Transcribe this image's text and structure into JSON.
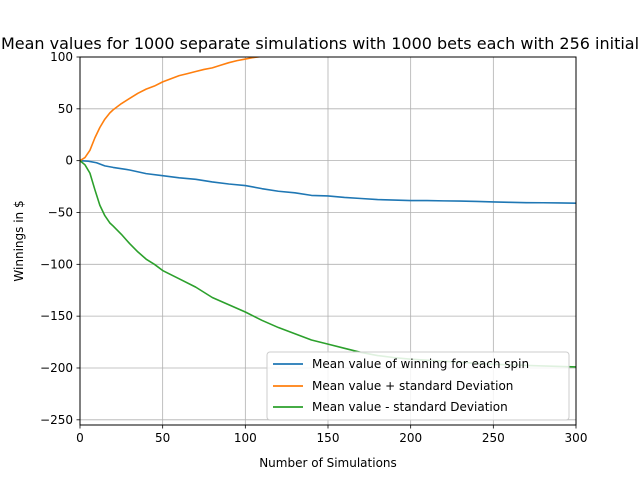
{
  "chart_data": {
    "type": "line",
    "title": "Mean values for 1000 separate simulations with 1000 bets each with 256 initial",
    "xlabel": "Number of Simulations",
    "ylabel": "Winnings in $",
    "xlim": [
      0,
      300
    ],
    "ylim": [
      -255,
      100
    ],
    "xticks": [
      0,
      50,
      100,
      150,
      200,
      250,
      300
    ],
    "yticks": [
      -250,
      -200,
      -150,
      -100,
      -50,
      0,
      50,
      100
    ],
    "grid": true,
    "legend_position": "lower-right",
    "series": [
      {
        "name": "Mean value of winning for each spin",
        "color": "#1f77b4",
        "x": [
          0,
          5,
          10,
          15,
          20,
          30,
          40,
          50,
          60,
          70,
          80,
          90,
          100,
          110,
          120,
          130,
          140,
          150,
          160,
          170,
          180,
          190,
          200,
          210,
          220,
          230,
          240,
          250,
          260,
          270,
          280,
          290,
          300
        ],
        "y": [
          0,
          -0.5,
          -2,
          -5,
          -6.5,
          -9,
          -12.5,
          -14.5,
          -16.5,
          -18,
          -20.5,
          -22.5,
          -24,
          -27,
          -29.5,
          -31,
          -33.5,
          -34,
          -35.5,
          -36.5,
          -37.5,
          -38,
          -38.5,
          -38.5,
          -38.8,
          -39,
          -39.3,
          -39.8,
          -40.2,
          -40.5,
          -40.6,
          -40.8,
          -41
        ]
      },
      {
        "name": "Mean value + standard Deviation",
        "color": "#ff7f0e",
        "x": [
          0,
          3,
          6,
          9,
          12,
          15,
          18,
          20,
          25,
          30,
          35,
          40,
          45,
          50,
          55,
          60,
          65,
          70,
          75,
          80,
          85,
          90,
          95,
          100,
          105,
          110
        ],
        "y": [
          0,
          3,
          10,
          22,
          32,
          40,
          46,
          49,
          55,
          60,
          65,
          69,
          72,
          76,
          79,
          82,
          84,
          86,
          88,
          89.5,
          92,
          94.5,
          96.5,
          98,
          99.5,
          100.5
        ]
      },
      {
        "name": "Mean value - standard Deviation",
        "color": "#2ca02c",
        "x": [
          0,
          3,
          6,
          9,
          12,
          15,
          18,
          20,
          25,
          30,
          35,
          40,
          45,
          50,
          60,
          70,
          80,
          90,
          100,
          110,
          120,
          130,
          140,
          150,
          160,
          170,
          180,
          190,
          200,
          210,
          220,
          230,
          240,
          250,
          260,
          270,
          280,
          290,
          300
        ],
        "y": [
          0,
          -4,
          -12,
          -28,
          -43,
          -53,
          -60,
          -63,
          -71,
          -80,
          -88,
          -95,
          -100,
          -106,
          -114,
          -122,
          -132,
          -139,
          -146,
          -154,
          -161,
          -167,
          -173,
          -177,
          -181,
          -185,
          -188,
          -190,
          -191.5,
          -192.5,
          -193.5,
          -194.5,
          -195.5,
          -196.5,
          -197,
          -197.5,
          -198,
          -198.5,
          -199
        ]
      }
    ]
  }
}
